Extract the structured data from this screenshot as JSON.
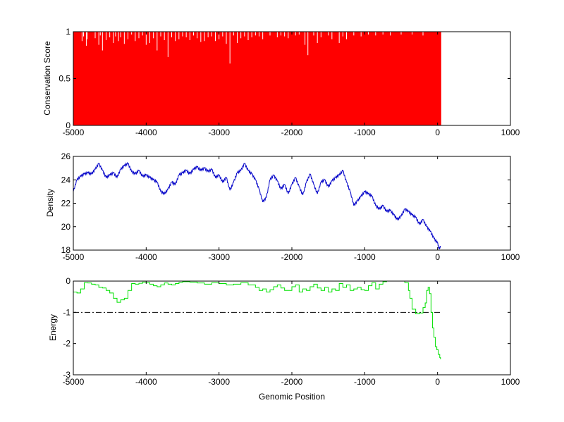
{
  "figure": {
    "background": "#ffffff",
    "shared_xlabel": "Genomic Position"
  },
  "chart_data": [
    {
      "type": "bar",
      "ylabel": "Conservation Score",
      "xlabel": "",
      "xlim": [
        -5000,
        1000
      ],
      "ylim": [
        0,
        1
      ],
      "xticks": [
        -5000,
        -4000,
        -3000,
        -2000,
        -1000,
        0,
        1000
      ],
      "xtick_labels": [
        "-5000",
        "-4000",
        "-3000",
        "-2000",
        "-1000",
        "0",
        "1000"
      ],
      "yticks": [
        0,
        0.5,
        1
      ],
      "ytick_labels": [
        "0",
        "0.5",
        "1"
      ],
      "color": "#ff0000",
      "grid": false,
      "series": [
        {
          "x_range": [
            -5000,
            50
          ],
          "fill_value": 1,
          "dips": [
            [
              -4880,
              0.9
            ],
            [
              -4860,
              0.95
            ],
            [
              -4820,
              0.85
            ],
            [
              -4810,
              0.92
            ],
            [
              -4700,
              0.93
            ],
            [
              -4650,
              0.86
            ],
            [
              -4630,
              0.96
            ],
            [
              -4600,
              0.8
            ],
            [
              -4550,
              0.91
            ],
            [
              -4500,
              0.94
            ],
            [
              -4450,
              0.88
            ],
            [
              -4420,
              0.95
            ],
            [
              -4380,
              0.9
            ],
            [
              -4350,
              0.94
            ],
            [
              -4300,
              0.87
            ],
            [
              -4250,
              0.92
            ],
            [
              -4200,
              0.97
            ],
            [
              -4150,
              0.9
            ],
            [
              -4100,
              0.93
            ],
            [
              -4050,
              0.96
            ],
            [
              -4000,
              0.86
            ],
            [
              -3950,
              0.88
            ],
            [
              -3900,
              0.93
            ],
            [
              -3850,
              0.8
            ],
            [
              -3800,
              0.95
            ],
            [
              -3750,
              0.91
            ],
            [
              -3700,
              0.73
            ],
            [
              -3650,
              0.94
            ],
            [
              -3600,
              0.9
            ],
            [
              -3550,
              0.92
            ],
            [
              -3500,
              0.95
            ],
            [
              -3450,
              0.94
            ],
            [
              -3400,
              0.91
            ],
            [
              -3350,
              0.96
            ],
            [
              -3300,
              0.93
            ],
            [
              -3250,
              0.89
            ],
            [
              -3200,
              0.9
            ],
            [
              -3150,
              0.94
            ],
            [
              -3100,
              0.95
            ],
            [
              -3050,
              0.9
            ],
            [
              -3000,
              0.92
            ],
            [
              -2950,
              0.95
            ],
            [
              -2900,
              0.87
            ],
            [
              -2850,
              0.66
            ],
            [
              -2800,
              0.96
            ],
            [
              -2750,
              0.88
            ],
            [
              -2700,
              0.93
            ],
            [
              -2650,
              0.95
            ],
            [
              -2600,
              0.91
            ],
            [
              -2550,
              0.94
            ],
            [
              -2500,
              0.96
            ],
            [
              -2450,
              0.95
            ],
            [
              -2400,
              0.92
            ],
            [
              -2300,
              0.96
            ],
            [
              -2200,
              0.94
            ],
            [
              -2150,
              0.96
            ],
            [
              -2100,
              0.95
            ],
            [
              -2050,
              0.93
            ],
            [
              -1950,
              0.96
            ],
            [
              -1900,
              0.97
            ],
            [
              -1820,
              0.86
            ],
            [
              -1780,
              0.75
            ],
            [
              -1700,
              0.96
            ],
            [
              -1650,
              0.88
            ],
            [
              -1600,
              0.94
            ],
            [
              -1500,
              0.96
            ],
            [
              -1450,
              0.92
            ],
            [
              -1350,
              0.88
            ],
            [
              -1300,
              0.95
            ],
            [
              -1250,
              0.92
            ],
            [
              -1150,
              0.96
            ],
            [
              -1050,
              0.95
            ],
            [
              -950,
              0.97
            ],
            [
              -850,
              0.96
            ],
            [
              -750,
              0.97
            ],
            [
              -650,
              0.96
            ],
            [
              -500,
              0.97
            ],
            [
              -350,
              0.97
            ],
            [
              -200,
              0.96
            ]
          ]
        }
      ]
    },
    {
      "type": "line",
      "ylabel": "Density",
      "xlabel": "",
      "xlim": [
        -5000,
        1000
      ],
      "ylim": [
        18,
        26
      ],
      "xticks": [
        -5000,
        -4000,
        -3000,
        -2000,
        -1000,
        0,
        1000
      ],
      "xtick_labels": [
        "-5000",
        "-4000",
        "-3000",
        "-2000",
        "-1000",
        "0",
        "1000"
      ],
      "yticks": [
        18,
        20,
        22,
        24,
        26
      ],
      "ytick_labels": [
        "18",
        "20",
        "22",
        "24",
        "26"
      ],
      "color": "#0000c8",
      "grid": false,
      "series": [
        {
          "x": [
            -5000,
            -4950,
            -4900,
            -4850,
            -4800,
            -4750,
            -4700,
            -4650,
            -4600,
            -4550,
            -4500,
            -4450,
            -4400,
            -4350,
            -4300,
            -4250,
            -4200,
            -4150,
            -4100,
            -4050,
            -4000,
            -3950,
            -3900,
            -3850,
            -3800,
            -3750,
            -3700,
            -3650,
            -3600,
            -3550,
            -3500,
            -3450,
            -3400,
            -3350,
            -3300,
            -3250,
            -3200,
            -3150,
            -3100,
            -3050,
            -3000,
            -2950,
            -2900,
            -2850,
            -2800,
            -2750,
            -2700,
            -2650,
            -2600,
            -2550,
            -2500,
            -2450,
            -2400,
            -2350,
            -2300,
            -2250,
            -2200,
            -2150,
            -2100,
            -2050,
            -2000,
            -1950,
            -1900,
            -1850,
            -1800,
            -1750,
            -1700,
            -1650,
            -1600,
            -1550,
            -1500,
            -1450,
            -1400,
            -1350,
            -1300,
            -1250,
            -1200,
            -1150,
            -1100,
            -1050,
            -1000,
            -950,
            -900,
            -850,
            -800,
            -750,
            -700,
            -650,
            -600,
            -550,
            -500,
            -450,
            -400,
            -350,
            -300,
            -250,
            -200,
            -150,
            -100,
            -50,
            0,
            20,
            40
          ],
          "y": [
            23.0,
            24.0,
            24.3,
            24.5,
            24.6,
            24.5,
            24.9,
            25.4,
            24.8,
            24.2,
            24.4,
            24.6,
            24.2,
            24.9,
            25.2,
            25.4,
            24.7,
            24.5,
            24.8,
            24.3,
            24.4,
            24.2,
            24.0,
            23.8,
            23.0,
            22.8,
            23.2,
            23.8,
            23.6,
            24.4,
            24.6,
            24.8,
            24.5,
            24.9,
            25.1,
            24.8,
            25.0,
            24.7,
            24.9,
            24.2,
            24.4,
            23.8,
            24.2,
            23.1,
            23.8,
            24.6,
            24.8,
            25.4,
            24.8,
            24.5,
            24.0,
            23.2,
            22.1,
            22.5,
            24.0,
            24.4,
            23.9,
            23.2,
            23.6,
            22.8,
            23.6,
            24.2,
            23.4,
            22.7,
            23.8,
            24.5,
            23.6,
            22.8,
            23.8,
            24.0,
            23.4,
            23.9,
            24.2,
            24.4,
            24.8,
            23.8,
            23.0,
            21.8,
            22.2,
            22.6,
            23.0,
            22.8,
            22.6,
            21.8,
            21.5,
            21.8,
            21.3,
            21.4,
            21.0,
            20.6,
            20.9,
            21.5,
            21.3,
            21.0,
            20.8,
            20.2,
            20.6,
            20.0,
            19.6,
            19.0,
            18.6,
            18.1,
            18.3
          ]
        }
      ]
    },
    {
      "type": "line",
      "ylabel": "Energy",
      "xlabel": "Genomic Position",
      "xlim": [
        -5000,
        1000
      ],
      "ylim": [
        -3,
        0
      ],
      "xticks": [
        -5000,
        -4000,
        -3000,
        -2000,
        -1000,
        0,
        1000
      ],
      "xtick_labels": [
        "-5000",
        "-4000",
        "-3000",
        "-2000",
        "-1000",
        "0",
        "1000"
      ],
      "yticks": [
        -3,
        -2,
        -1,
        0
      ],
      "ytick_labels": [
        "-3",
        "-2",
        "-1",
        "0"
      ],
      "color": "#00e000",
      "grid": false,
      "reference_line": {
        "y": -1,
        "style": "dash-dot",
        "x_range": [
          -5000,
          50
        ],
        "color": "#000000"
      },
      "series": [
        {
          "x": [
            -5000,
            -4950,
            -4900,
            -4850,
            -4800,
            -4750,
            -4700,
            -4650,
            -4600,
            -4550,
            -4500,
            -4450,
            -4400,
            -4350,
            -4300,
            -4250,
            -4200,
            -4150,
            -4100,
            -4050,
            -4000,
            -3950,
            -3900,
            -3850,
            -3800,
            -3750,
            -3700,
            -3650,
            -3600,
            -3550,
            -3500,
            -3400,
            -3300,
            -3200,
            -3100,
            -3000,
            -2900,
            -2800,
            -2700,
            -2600,
            -2500,
            -2450,
            -2400,
            -2350,
            -2300,
            -2250,
            -2200,
            -2150,
            -2100,
            -2000,
            -1950,
            -1900,
            -1850,
            -1800,
            -1750,
            -1700,
            -1650,
            -1600,
            -1550,
            -1500,
            -1450,
            -1400,
            -1350,
            -1300,
            -1250,
            -1200,
            -1150,
            -1100,
            -1050,
            -1000,
            -950,
            -900,
            -850,
            -800,
            -750,
            -700,
            -600,
            -500,
            -450,
            -400,
            -380,
            -350,
            -300,
            -250,
            -200,
            -170,
            -150,
            -130,
            -110,
            -90,
            -70,
            -50,
            -30,
            -10,
            10,
            30,
            40
          ],
          "y": [
            -0.35,
            -0.38,
            -0.25,
            -0.05,
            -0.06,
            -0.1,
            -0.12,
            -0.2,
            -0.22,
            -0.3,
            -0.38,
            -0.55,
            -0.68,
            -0.6,
            -0.55,
            -0.3,
            -0.08,
            -0.1,
            -0.07,
            -0.03,
            -0.05,
            -0.1,
            -0.15,
            -0.18,
            -0.12,
            -0.06,
            -0.1,
            -0.12,
            -0.08,
            -0.04,
            -0.02,
            -0.03,
            -0.06,
            -0.1,
            -0.05,
            -0.08,
            -0.12,
            -0.1,
            -0.05,
            -0.12,
            -0.2,
            -0.3,
            -0.25,
            -0.35,
            -0.28,
            -0.18,
            -0.12,
            -0.22,
            -0.3,
            -0.18,
            -0.12,
            -0.35,
            -0.25,
            -0.3,
            -0.18,
            -0.1,
            -0.22,
            -0.3,
            -0.2,
            -0.35,
            -0.25,
            -0.3,
            -0.08,
            -0.2,
            -0.12,
            -0.3,
            -0.25,
            -0.2,
            -0.28,
            -0.3,
            -0.15,
            -0.05,
            -0.25,
            -0.1,
            -0.02,
            0.0,
            0.0,
            0.0,
            -0.05,
            -0.3,
            -0.55,
            -0.9,
            -1.05,
            -1.02,
            -0.85,
            -0.7,
            -0.3,
            -0.2,
            -0.4,
            -1.0,
            -1.5,
            -1.8,
            -2.1,
            -2.2,
            -2.35,
            -2.45,
            -2.5
          ]
        }
      ]
    }
  ]
}
